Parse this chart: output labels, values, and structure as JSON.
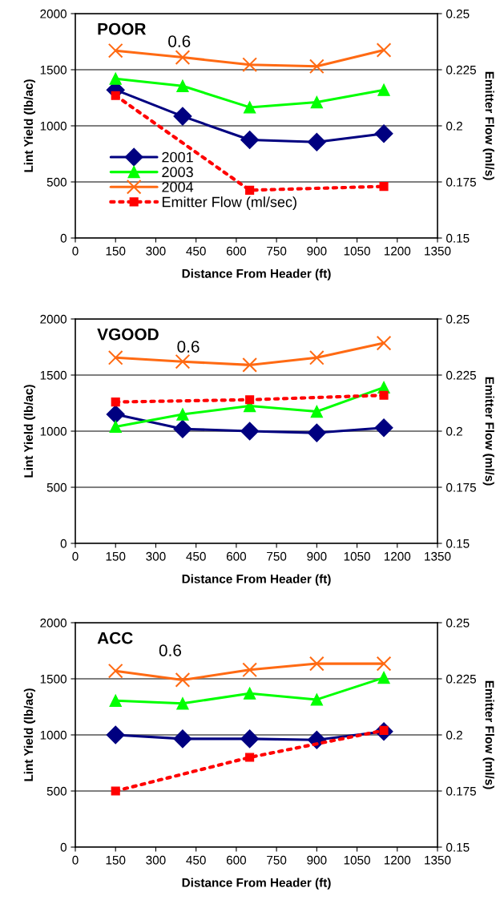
{
  "chart_data": [
    {
      "type": "line",
      "title": "POOR",
      "subtitle": "0.6",
      "xlabel": "Distance From Header (ft)",
      "ylabel": "Lint Yield (lb/ac)",
      "y2label": "Emitter Flow (ml/s)",
      "x": [
        150,
        400,
        650,
        900,
        1150
      ],
      "xlim": [
        0,
        1350
      ],
      "xticks": [
        0,
        150,
        300,
        450,
        600,
        750,
        900,
        1050,
        1200,
        1350
      ],
      "ylim": [
        0,
        2000
      ],
      "yticks": [
        0,
        500,
        1000,
        1500,
        2000
      ],
      "y2lim": [
        0.15,
        0.25
      ],
      "y2ticks": [
        0.15,
        0.175,
        0.2,
        0.225,
        0.25
      ],
      "grid": "y",
      "legend": "lower left",
      "series": [
        {
          "name": "2001",
          "color": "#000080",
          "marker": "diamond",
          "line_style": "solid",
          "values": [
            1320,
            1085,
            875,
            855,
            930
          ]
        },
        {
          "name": "2003",
          "color": "#00ff00",
          "marker": "triangle",
          "line_style": "solid",
          "values": [
            1420,
            1355,
            1165,
            1210,
            1320
          ]
        },
        {
          "name": "2004",
          "color": "#ff6a13",
          "marker": "cross",
          "line_style": "solid",
          "values": [
            1670,
            1610,
            1545,
            1530,
            1675
          ]
        },
        {
          "name": "Emitter Flow (ml/sec)",
          "color": "#ff0000",
          "marker": "square",
          "line_style": "dotted",
          "axis": "y2",
          "x": [
            150,
            650,
            1150
          ],
          "values": [
            0.2135,
            0.1713,
            0.173
          ]
        }
      ]
    },
    {
      "type": "line",
      "title": "VGOOD",
      "subtitle": "0.6",
      "xlabel": "Distance From Header (ft)",
      "ylabel": "Lint Yield (lb/ac)",
      "y2label": "Emitter Flow (ml/s)",
      "x": [
        150,
        400,
        650,
        900,
        1150
      ],
      "xlim": [
        0,
        1350
      ],
      "xticks": [
        0,
        150,
        300,
        450,
        600,
        750,
        900,
        1050,
        1200,
        1350
      ],
      "ylim": [
        0,
        2000
      ],
      "yticks": [
        0,
        500,
        1000,
        1500,
        2000
      ],
      "y2lim": [
        0.15,
        0.25
      ],
      "y2ticks": [
        0.15,
        0.175,
        0.2,
        0.225,
        0.25
      ],
      "grid": "y",
      "series": [
        {
          "color": "#000080",
          "marker": "diamond",
          "line_style": "solid",
          "values": [
            1150,
            1020,
            1000,
            985,
            1030
          ]
        },
        {
          "color": "#00ff00",
          "marker": "triangle",
          "line_style": "solid",
          "values": [
            1040,
            1150,
            1225,
            1175,
            1390
          ]
        },
        {
          "color": "#ff6a13",
          "marker": "cross",
          "line_style": "solid",
          "values": [
            1655,
            1620,
            1590,
            1655,
            1785
          ]
        },
        {
          "color": "#ff0000",
          "marker": "square",
          "line_style": "dotted",
          "axis": "y2",
          "x": [
            150,
            650,
            1150
          ],
          "values": [
            0.213,
            0.214,
            0.216
          ]
        }
      ]
    },
    {
      "type": "line",
      "title": "ACC",
      "subtitle": "0.6",
      "xlabel": "Distance From Header (ft)",
      "ylabel": "Lint Yield (lb/ac)",
      "y2label": "Emitter Flow (ml/s)",
      "x": [
        150,
        400,
        650,
        900,
        1150
      ],
      "xlim": [
        0,
        1350
      ],
      "xticks": [
        0,
        150,
        300,
        450,
        600,
        750,
        900,
        1050,
        1200,
        1350
      ],
      "ylim": [
        0,
        2000
      ],
      "yticks": [
        0,
        500,
        1000,
        1500,
        2000
      ],
      "y2lim": [
        0.15,
        0.25
      ],
      "y2ticks": [
        0.15,
        0.175,
        0.2,
        0.225,
        0.25
      ],
      "grid": "y",
      "series": [
        {
          "color": "#000080",
          "marker": "diamond",
          "line_style": "solid",
          "values": [
            1000,
            965,
            965,
            955,
            1030
          ]
        },
        {
          "color": "#00ff00",
          "marker": "triangle",
          "line_style": "solid",
          "values": [
            1305,
            1280,
            1370,
            1315,
            1510
          ]
        },
        {
          "color": "#ff6a13",
          "marker": "cross",
          "line_style": "solid",
          "values": [
            1570,
            1490,
            1580,
            1635,
            1635
          ]
        },
        {
          "color": "#ff0000",
          "marker": "square",
          "line_style": "dotted",
          "axis": "y2",
          "x": [
            150,
            650,
            1150
          ],
          "values": [
            0.175,
            0.19,
            0.202
          ]
        }
      ]
    }
  ]
}
